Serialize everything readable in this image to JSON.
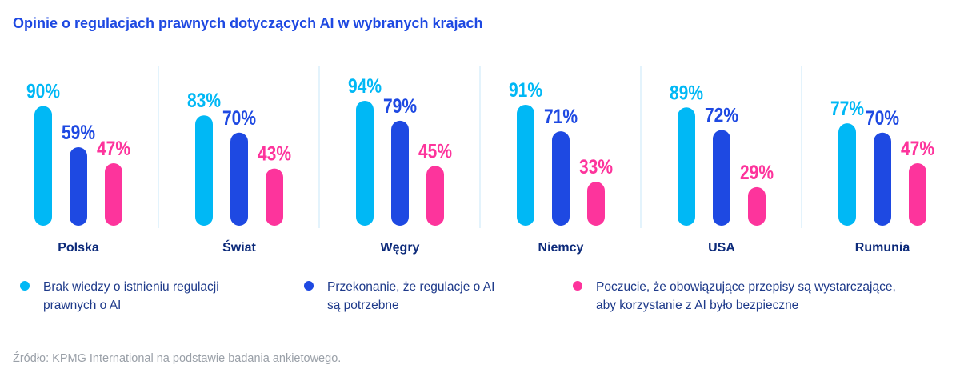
{
  "chart_data": {
    "type": "bar",
    "title": "Opinie o regulacjach prawnych dotyczących AI w wybranych krajach",
    "categories": [
      "Polska",
      "Świat",
      "Węgry",
      "Niemcy",
      "USA",
      "Rumunia"
    ],
    "series": [
      {
        "name": "Brak wiedzy o istnieniu regulacji prawnych o AI",
        "color": "#00b8f5",
        "values": [
          90,
          83,
          94,
          91,
          89,
          77
        ]
      },
      {
        "name": "Przekonanie, że regulacje o AI są potrzebne",
        "color": "#1e49e2",
        "values": [
          59,
          70,
          79,
          71,
          72,
          70
        ]
      },
      {
        "name": "Poczucie, że obowiązujące przepisy są wystarczające, aby korzystanie z AI było bezpieczne",
        "color": "#fd349c",
        "values": [
          47,
          43,
          45,
          33,
          29,
          47
        ]
      }
    ],
    "value_suffix": "%",
    "ylim": [
      0,
      100
    ],
    "xlabel": "",
    "ylabel": "",
    "grid": false,
    "legend_placement": "bottom"
  },
  "legend": [
    {
      "line1": "Brak wiedzy o istnieniu regulacji",
      "line2": "prawnych o AI"
    },
    {
      "line1": "Przekonanie, że regulacje o AI",
      "line2": "są potrzebne"
    },
    {
      "line1": "Poczucie, że obowiązujące przepisy są wystarczające,",
      "line2": "aby korzystanie z AI było bezpieczne"
    }
  ],
  "source": "Źródło: KPMG International na podstawie badania ankietowego."
}
